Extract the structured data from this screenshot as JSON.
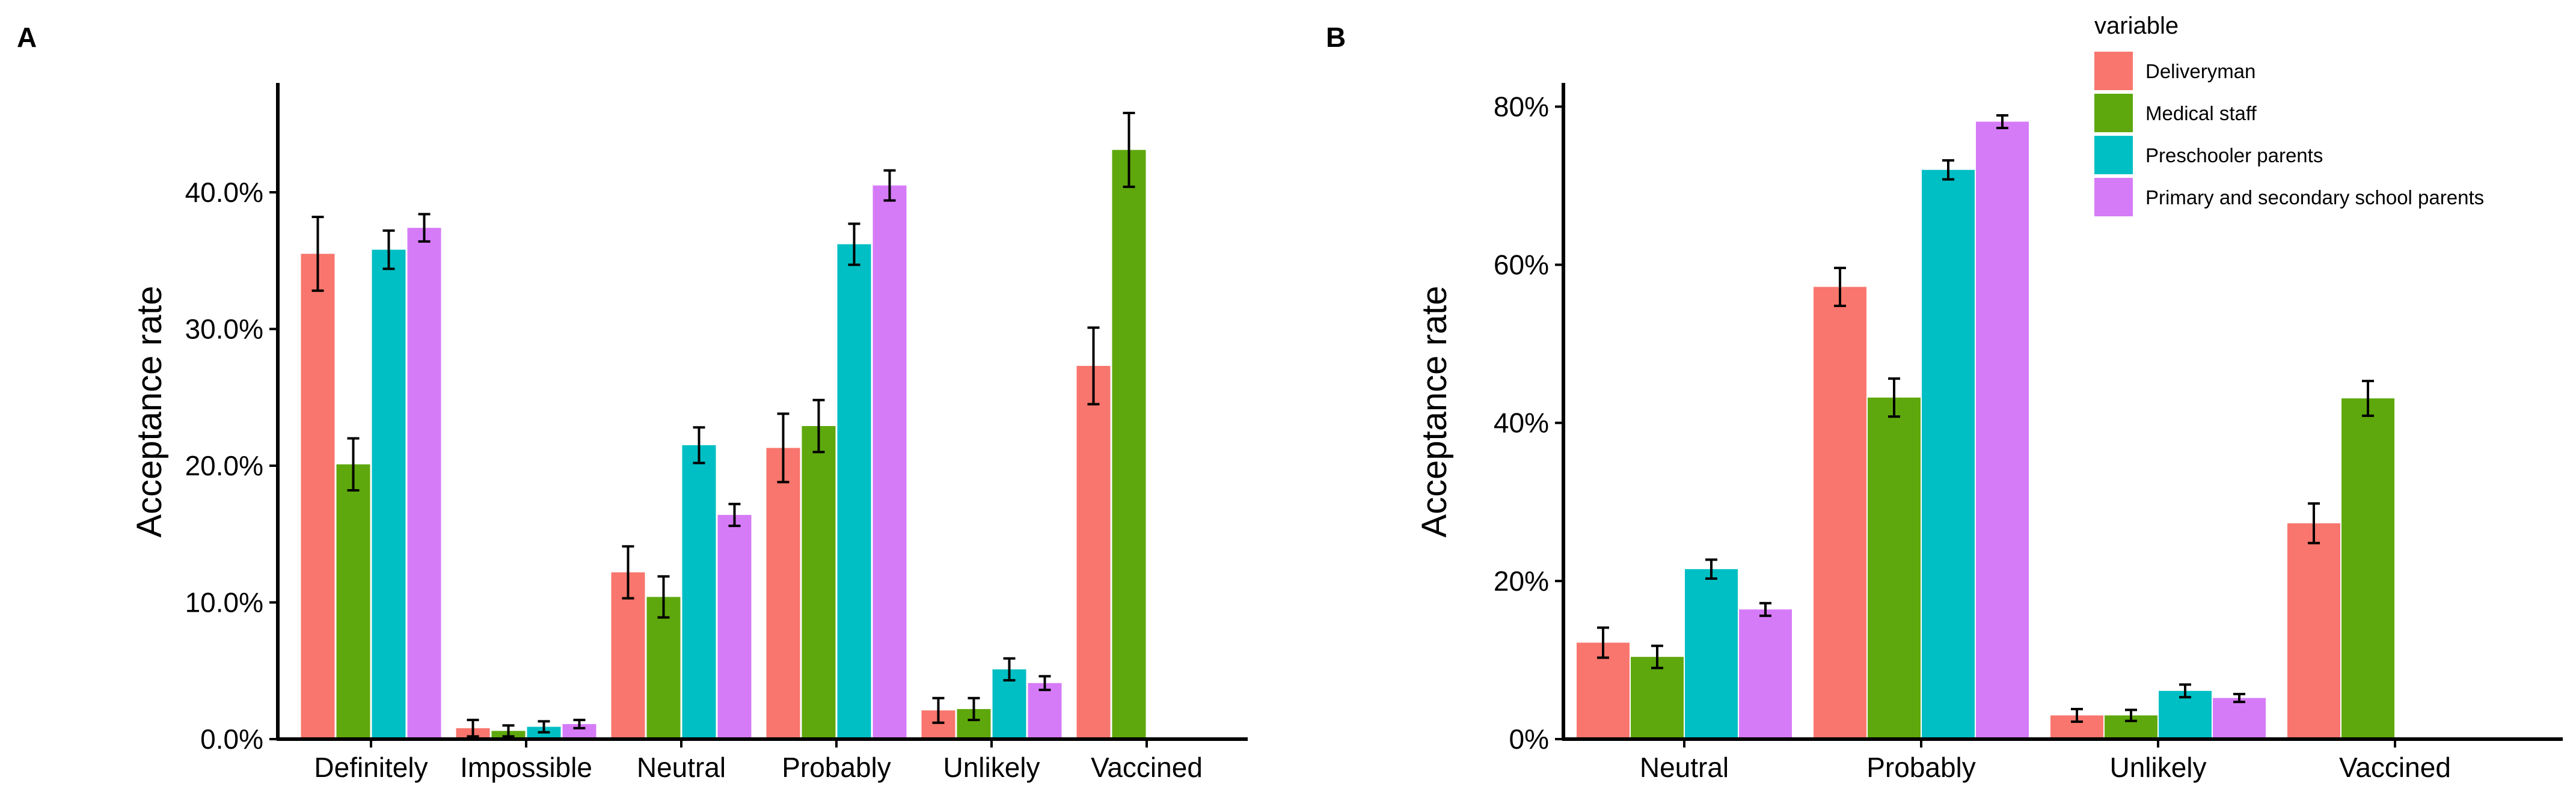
{
  "chart_data": [
    {
      "panel": "A",
      "type": "bar",
      "ylabel": "Acceptance rate",
      "ylim": [
        0,
        0.48
      ],
      "yticks": [
        0,
        0.1,
        0.2,
        0.3,
        0.4
      ],
      "ytick_labels": [
        "0.0%",
        "10.0%",
        "20.0%",
        "30.0%",
        "40.0%"
      ],
      "categories": [
        "Definitely",
        "Impossible",
        "Neutral",
        "Probably",
        "Unlikely",
        "Vaccined"
      ],
      "missing_marker": "-",
      "series": [
        {
          "name": "Deliveryman",
          "values": [
            0.355,
            0.008,
            0.122,
            0.213,
            0.021,
            0.273
          ],
          "errors": [
            0.027,
            0.006,
            0.019,
            0.025,
            0.009,
            0.028
          ]
        },
        {
          "name": "Medical staff",
          "values": [
            0.201,
            0.006,
            0.104,
            0.229,
            0.022,
            0.431
          ],
          "errors": [
            0.019,
            0.004,
            0.015,
            0.019,
            0.008,
            0.027
          ]
        },
        {
          "name": "Preschooler parents",
          "values": [
            0.358,
            0.009,
            0.215,
            0.362,
            0.051,
            null
          ],
          "errors": [
            0.014,
            0.004,
            0.013,
            0.015,
            0.008,
            null
          ]
        },
        {
          "name": "Primary and secondary school parents",
          "values": [
            0.374,
            0.011,
            0.164,
            0.405,
            0.041,
            null
          ],
          "errors": [
            0.01,
            0.003,
            0.008,
            0.011,
            0.005,
            null
          ]
        }
      ]
    },
    {
      "panel": "B",
      "type": "bar",
      "ylabel": "Acceptance rate",
      "ylim": [
        0,
        0.83
      ],
      "yticks": [
        0,
        0.2,
        0.4,
        0.6,
        0.8
      ],
      "ytick_labels": [
        "0%",
        "20%",
        "40%",
        "60%",
        "80%"
      ],
      "categories": [
        "Neutral",
        "Probably",
        "Unlikely",
        "Vaccined"
      ],
      "missing_marker": "-",
      "series": [
        {
          "name": "Deliveryman",
          "values": [
            0.122,
            0.572,
            0.03,
            0.273
          ],
          "errors": [
            0.019,
            0.024,
            0.008,
            0.025
          ]
        },
        {
          "name": "Medical staff",
          "values": [
            0.104,
            0.432,
            0.03,
            0.431
          ],
          "errors": [
            0.014,
            0.024,
            0.007,
            0.022
          ]
        },
        {
          "name": "Preschooler parents",
          "values": [
            0.215,
            0.72,
            0.061,
            null
          ],
          "errors": [
            0.012,
            0.012,
            0.008,
            null
          ]
        },
        {
          "name": "Primary and secondary school parents",
          "values": [
            0.164,
            0.781,
            0.052,
            null
          ],
          "errors": [
            0.008,
            0.008,
            0.005,
            null
          ]
        }
      ],
      "legend": {
        "title": "variable",
        "position": "top-right"
      }
    }
  ],
  "colors": {
    "Deliveryman": "#F8766D",
    "Medical staff": "#5EA80D",
    "Preschooler parents": "#00BFC4",
    "Primary and secondary school parents": "#D67BF8"
  }
}
